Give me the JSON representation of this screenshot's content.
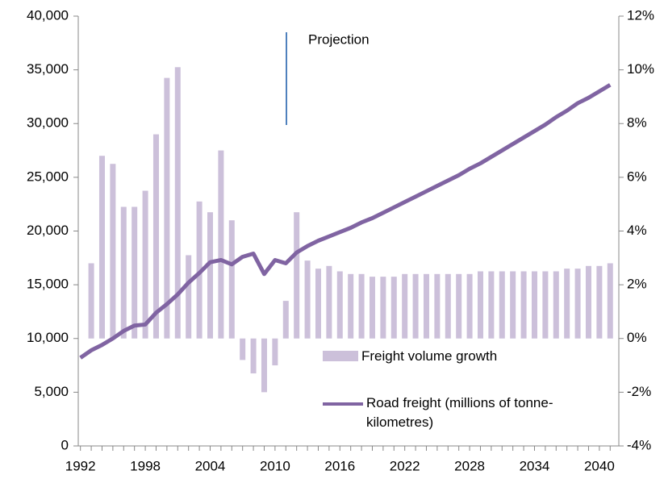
{
  "chart_data": {
    "type": "bar-line",
    "annotation": "Projection",
    "x": [
      1992,
      1993,
      1994,
      1995,
      1996,
      1997,
      1998,
      1999,
      2000,
      2001,
      2002,
      2003,
      2004,
      2005,
      2006,
      2007,
      2008,
      2009,
      2010,
      2011,
      2012,
      2013,
      2014,
      2015,
      2016,
      2017,
      2018,
      2019,
      2020,
      2021,
      2022,
      2023,
      2024,
      2025,
      2026,
      2027,
      2028,
      2029,
      2030,
      2031,
      2032,
      2033,
      2034,
      2035,
      2036,
      2037,
      2038,
      2039,
      2040,
      2041
    ],
    "xlim": [
      1991.8,
      2041.8
    ],
    "xticks": [
      1992,
      1998,
      2004,
      2010,
      2016,
      2022,
      2028,
      2034,
      2040
    ],
    "ylim": [
      0,
      40000
    ],
    "yticks": [
      0,
      {
        "value": 5000,
        "label": "5,000"
      },
      {
        "value": 10000,
        "label": "10,000"
      },
      {
        "value": 15000,
        "label": "15,000"
      },
      {
        "value": 20000,
        "label": "20,000"
      },
      {
        "value": 25000,
        "label": "25,000"
      },
      {
        "value": 30000,
        "label": "30,000"
      },
      {
        "value": 35000,
        "label": "35,000"
      },
      {
        "value": 40000,
        "label": "40,000"
      }
    ],
    "y2lim": [
      -4,
      12
    ],
    "y2ticks": [
      {
        "value": -4,
        "label": "-4%"
      },
      {
        "value": -2,
        "label": "-2%"
      },
      {
        "value": 0,
        "label": "0%"
      },
      {
        "value": 2,
        "label": "2%"
      },
      {
        "value": 4,
        "label": "4%"
      },
      {
        "value": 6,
        "label": "6%"
      },
      {
        "value": 8,
        "label": "8%"
      },
      {
        "value": 10,
        "label": "10%"
      },
      {
        "value": 12,
        "label": "12%"
      }
    ],
    "series": [
      {
        "name": "Freight volume growth",
        "type": "bar",
        "axis": "y2",
        "color": "#ccc0da",
        "values": [
          null,
          2.8,
          6.8,
          6.5,
          4.9,
          4.9,
          5.5,
          7.6,
          9.7,
          10.1,
          3.1,
          5.1,
          4.7,
          7.0,
          4.4,
          -0.8,
          -1.3,
          -2.0,
          -1.0,
          1.4,
          4.7,
          2.9,
          2.6,
          2.7,
          2.5,
          2.4,
          2.4,
          2.3,
          2.3,
          2.3,
          2.4,
          2.4,
          2.4,
          2.4,
          2.4,
          2.4,
          2.4,
          2.5,
          2.5,
          2.5,
          2.5,
          2.5,
          2.5,
          2.5,
          2.5,
          2.6,
          2.6,
          2.7,
          2.7,
          2.8
        ]
      },
      {
        "name": "Road freight (millions of tonne-kilometres)",
        "type": "line",
        "color": "#8064a2",
        "values": [
          8200,
          8900,
          9400,
          10000,
          10700,
          11200,
          11300,
          12400,
          13200,
          14100,
          15200,
          16100,
          17100,
          17300,
          16900,
          17600,
          17900,
          16000,
          17300,
          17000,
          18000,
          18600,
          19100,
          19500,
          19900,
          20300,
          20800,
          21200,
          21700,
          22200,
          22700,
          23200,
          23700,
          24200,
          24700,
          25200,
          25800,
          26300,
          26900,
          27500,
          28100,
          28700,
          29300,
          29900,
          30600,
          31200,
          31900,
          32400,
          33000,
          33600
        ]
      }
    ]
  }
}
